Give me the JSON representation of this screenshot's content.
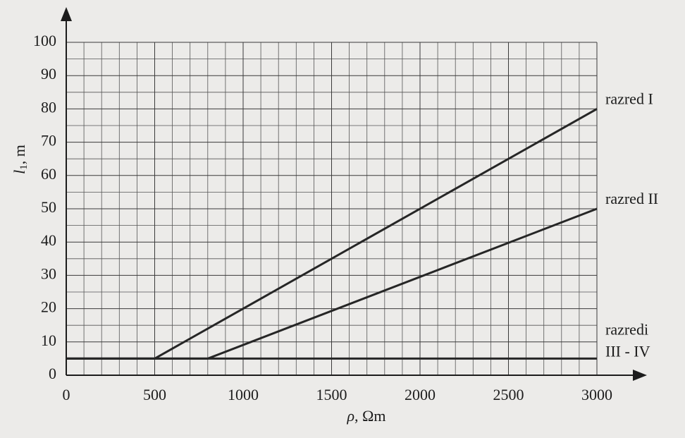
{
  "chart_data": {
    "type": "line",
    "xlabel": [
      "ρ",
      ", Ωm"
    ],
    "ylabel": [
      "l",
      "1",
      ", m"
    ],
    "xlim": [
      0,
      3000
    ],
    "ylim": [
      0,
      100
    ],
    "xticks": [
      0,
      500,
      1000,
      1500,
      2000,
      2500,
      3000
    ],
    "yticks": [
      0,
      10,
      20,
      30,
      40,
      50,
      60,
      70,
      80,
      90,
      100
    ],
    "grid": true,
    "series": [
      {
        "name": [
          "razred I"
        ],
        "color": "#262626",
        "x": [
          0,
          500,
          3000
        ],
        "values": [
          5,
          5,
          80
        ]
      },
      {
        "name": [
          "razred II"
        ],
        "color": "#262626",
        "x": [
          0,
          800,
          3000
        ],
        "values": [
          5,
          5,
          50
        ]
      },
      {
        "name": [
          "razredi",
          "III - IV"
        ],
        "color": "#262626",
        "x": [
          0,
          3000
        ],
        "values": [
          5,
          5
        ]
      }
    ]
  }
}
